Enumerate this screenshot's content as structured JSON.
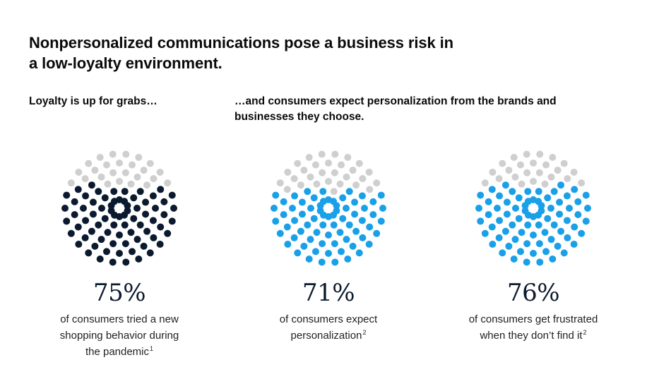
{
  "title": {
    "line1": "Nonpersonalized communications pose a business risk in",
    "line2": "a low-loyalty environment."
  },
  "subtitles": {
    "left": "Loyalty is up for grabs…",
    "right": "…and consumers expect personalization from the brands and businesses they choose."
  },
  "colors": {
    "inactive_dot": "#cfcfcf",
    "navy": "#0b1a2e",
    "blue": "#1aa0e8"
  },
  "chart_data": [
    {
      "type": "dot-circle",
      "value": 75,
      "label": "75%",
      "desc_line1": "of consumers tried a new",
      "desc_line2": "shopping behavior during",
      "desc_line3": "the pandemic",
      "footnote": "1",
      "color": "#0b1a2e"
    },
    {
      "type": "dot-circle",
      "value": 71,
      "label": "71%",
      "desc_line1": "of consumers expect",
      "desc_line2": "personalization",
      "footnote": "2",
      "color": "#1aa0e8"
    },
    {
      "type": "dot-circle",
      "value": 76,
      "label": "76%",
      "desc_line1": "of consumers get frustrated",
      "desc_line2": "when they don’t find it",
      "footnote": "2",
      "color": "#1aa0e8"
    }
  ]
}
